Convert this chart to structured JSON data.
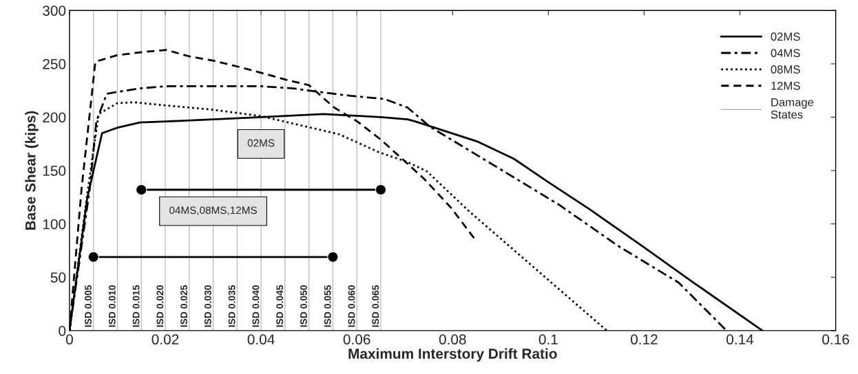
{
  "chart_data": {
    "type": "line",
    "xlabel": "Maximum Interstory Drift Ratio",
    "ylabel": "Base Shear (kips)",
    "xlim": [
      0,
      0.16
    ],
    "xticks": [
      0,
      0.02,
      0.04,
      0.06,
      0.08,
      0.1,
      0.12,
      0.14,
      0.16
    ],
    "ylim": [
      0,
      300
    ],
    "yticks": [
      0,
      50,
      100,
      150,
      200,
      250,
      300
    ],
    "legend": "top right",
    "grid": false,
    "series": [
      {
        "name": "02MS",
        "color": "#000000",
        "line_style": "solid",
        "x": [
          0,
          0.0037,
          0.0068,
          0.0099,
          0.0147,
          0.0202,
          0.03,
          0.04,
          0.053,
          0.065,
          0.0706,
          0.0722,
          0.0853,
          0.0928,
          0.0997,
          0.1085,
          0.1197,
          0.1303,
          0.1447
        ],
        "values": [
          0,
          124,
          185,
          190,
          195,
          196,
          198,
          200,
          203,
          200,
          198,
          196,
          177,
          161,
          140,
          114,
          79,
          45,
          0
        ]
      },
      {
        "name": "04MS",
        "color": "#000000",
        "line_style": "dashdot",
        "x": [
          0,
          0.0042,
          0.0056,
          0.0078,
          0.0104,
          0.0147,
          0.0202,
          0.04,
          0.0467,
          0.0515,
          0.0587,
          0.0658,
          0.0706,
          0.0753,
          0.0897,
          0.1022,
          0.1147,
          0.1272,
          0.1372
        ],
        "values": [
          0,
          132,
          196,
          222,
          224,
          227,
          229,
          229,
          227,
          224,
          220,
          217,
          209,
          191,
          152,
          118,
          79,
          45,
          0
        ]
      },
      {
        "name": "08MS",
        "color": "#000000",
        "line_style": "dotted",
        "x": [
          0,
          0.0037,
          0.0061,
          0.0099,
          0.0133,
          0.0202,
          0.03,
          0.04,
          0.0467,
          0.0563,
          0.0647,
          0.0706,
          0.0747,
          0.0834,
          0.0991,
          0.1122
        ],
        "values": [
          0,
          128,
          203,
          213,
          214,
          211,
          207,
          201,
          194,
          184,
          167,
          158,
          149,
          112,
          51,
          0
        ]
      },
      {
        "name": "12MS",
        "color": "#000000",
        "line_style": "dashed",
        "x": [
          0,
          0.0025,
          0.0054,
          0.0099,
          0.0152,
          0.0202,
          0.025,
          0.03,
          0.0355,
          0.0405,
          0.0453,
          0.05,
          0.053,
          0.0553,
          0.0601,
          0.065,
          0.0707,
          0.0741,
          0.0797,
          0.0846
        ],
        "values": [
          0,
          132,
          252,
          258,
          261,
          263,
          257,
          253,
          247,
          241,
          235,
          230,
          218,
          209,
          196,
          179,
          156,
          142,
          115,
          86
        ]
      },
      {
        "name": "02MS",
        "color": "#000000",
        "line_style": "solid",
        "marker": "circle",
        "x": [
          0.015,
          0.065
        ],
        "values": [
          132,
          132
        ]
      },
      {
        "name": "04MS,08MS,12MS",
        "color": "#000000",
        "line_style": "solid",
        "marker": "circle",
        "x": [
          0.005,
          0.055
        ],
        "values": [
          69,
          69
        ]
      }
    ],
    "ref_lines": [
      {
        "axis": "x",
        "value": 0.005,
        "label": "ISD 0.005",
        "color": "#b0b0b0"
      },
      {
        "axis": "x",
        "value": 0.01,
        "label": "ISD 0.010",
        "color": "#b0b0b0"
      },
      {
        "axis": "x",
        "value": 0.015,
        "label": "ISD 0.015",
        "color": "#b0b0b0"
      },
      {
        "axis": "x",
        "value": 0.02,
        "label": "ISD 0.020",
        "color": "#b0b0b0"
      },
      {
        "axis": "x",
        "value": 0.025,
        "label": "ISD 0.025",
        "color": "#b0b0b0"
      },
      {
        "axis": "x",
        "value": 0.03,
        "label": "ISD 0.030",
        "color": "#b0b0b0"
      },
      {
        "axis": "x",
        "value": 0.035,
        "label": "ISD 0.035",
        "color": "#b0b0b0"
      },
      {
        "axis": "x",
        "value": 0.04,
        "label": "ISD 0.040",
        "color": "#b0b0b0"
      },
      {
        "axis": "x",
        "value": 0.045,
        "label": "ISD 0.045",
        "color": "#b0b0b0"
      },
      {
        "axis": "x",
        "value": 0.05,
        "label": "ISD 0.050",
        "color": "#b0b0b0"
      },
      {
        "axis": "x",
        "value": 0.055,
        "label": "ISD 0.055",
        "color": "#b0b0b0"
      },
      {
        "axis": "x",
        "value": 0.06,
        "label": "ISD 0.060",
        "color": "#b0b0b0"
      },
      {
        "axis": "x",
        "value": 0.065,
        "label": "ISD 0.065",
        "color": "#b0b0b0"
      }
    ],
    "annotations": [
      "Damage States"
    ]
  }
}
